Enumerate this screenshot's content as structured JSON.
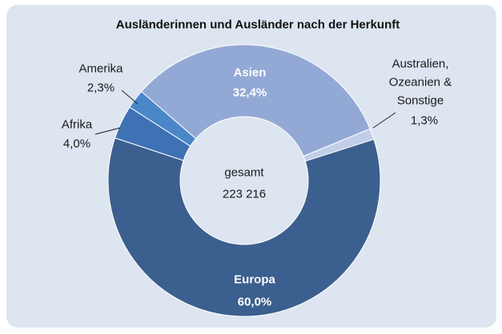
{
  "chart_data": {
    "type": "pie",
    "title": "Ausländerinnen und Ausländer nach der Herkunft",
    "categories": [
      "Europa",
      "Afrika",
      "Amerika",
      "Asien",
      "Australien, Ozeanien & Sonstige"
    ],
    "values": [
      60.0,
      4.0,
      2.3,
      32.4,
      1.3
    ],
    "value_labels": [
      "60,0%",
      "4,0%",
      "2,3%",
      "32,4%",
      "1,3%"
    ],
    "colors": [
      "#3b5f8e",
      "#3e72b4",
      "#4a87c9",
      "#93a9d5",
      "#c1cee7"
    ],
    "center_label": [
      "gesamt",
      "223 216"
    ]
  }
}
